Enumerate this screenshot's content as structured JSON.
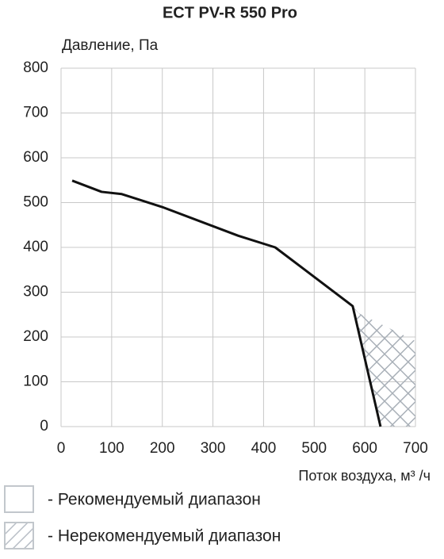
{
  "chart_data": {
    "type": "line",
    "title": "ECT PV-R 550 Pro",
    "y_label": "Давление, Па",
    "x_label": "Поток воздуха, м³ /ч",
    "xlim": [
      0,
      700
    ],
    "xticks": [
      0,
      100,
      200,
      300,
      400,
      500,
      600,
      700
    ],
    "ylim": [
      0,
      800
    ],
    "yticks": [
      0,
      100,
      200,
      300,
      400,
      500,
      600,
      700,
      800
    ],
    "grid": true,
    "series": [
      {
        "color": "#111111",
        "x": [
          22,
          80,
          120,
          200,
          350,
          423,
          576,
          631
        ],
        "y": [
          549,
          524,
          519,
          490,
          426,
          400,
          269,
          0
        ]
      }
    ],
    "zone": {
      "color": "#a9b0b8",
      "x": [
        576,
        588,
        700,
        700,
        631
      ],
      "y": [
        269,
        253,
        191,
        0,
        0
      ]
    },
    "legend": [
      "- Рекомендуемый диапазон",
      "- Нерекомендуемый диапазон"
    ]
  }
}
